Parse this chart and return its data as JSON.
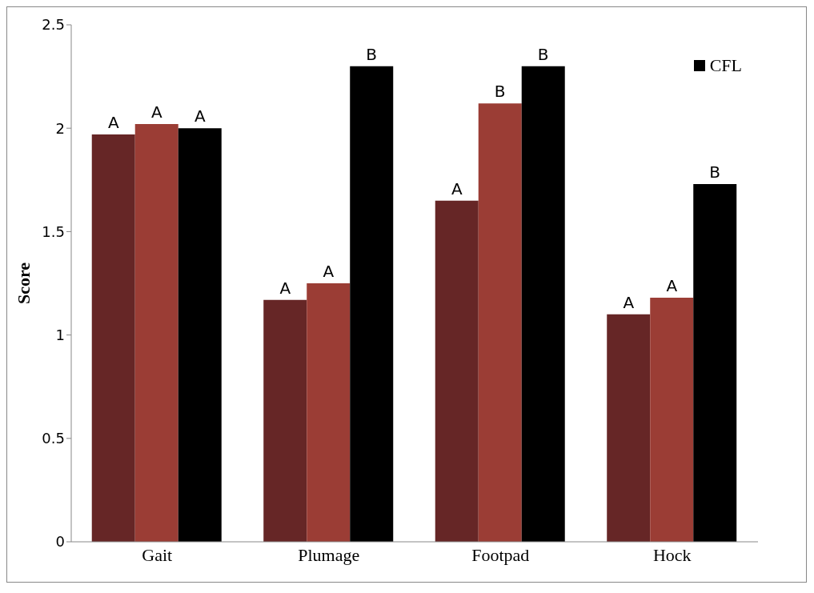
{
  "chart_data": {
    "type": "bar",
    "ylabel": "Score",
    "categories": [
      "Gait",
      "Plumage",
      "Footpad",
      "Hock"
    ],
    "series": [
      {
        "color": "#662626",
        "values": [
          1.97,
          1.17,
          1.65,
          1.1
        ]
      },
      {
        "color": "#9b3d35",
        "values": [
          2.02,
          1.25,
          2.12,
          1.18
        ]
      },
      {
        "name": "CFL",
        "color": "#000000",
        "values": [
          2.0,
          2.3,
          2.3,
          1.73
        ]
      }
    ],
    "ylim": [
      0,
      2.5
    ],
    "yticks": [
      0,
      0.5,
      1,
      1.5,
      2,
      2.5
    ],
    "grid": false,
    "legend": "top right",
    "annotations": [
      "A",
      "A",
      "A",
      "A",
      "A",
      "B",
      "A",
      "B",
      "B",
      "A",
      "A",
      "B"
    ]
  }
}
